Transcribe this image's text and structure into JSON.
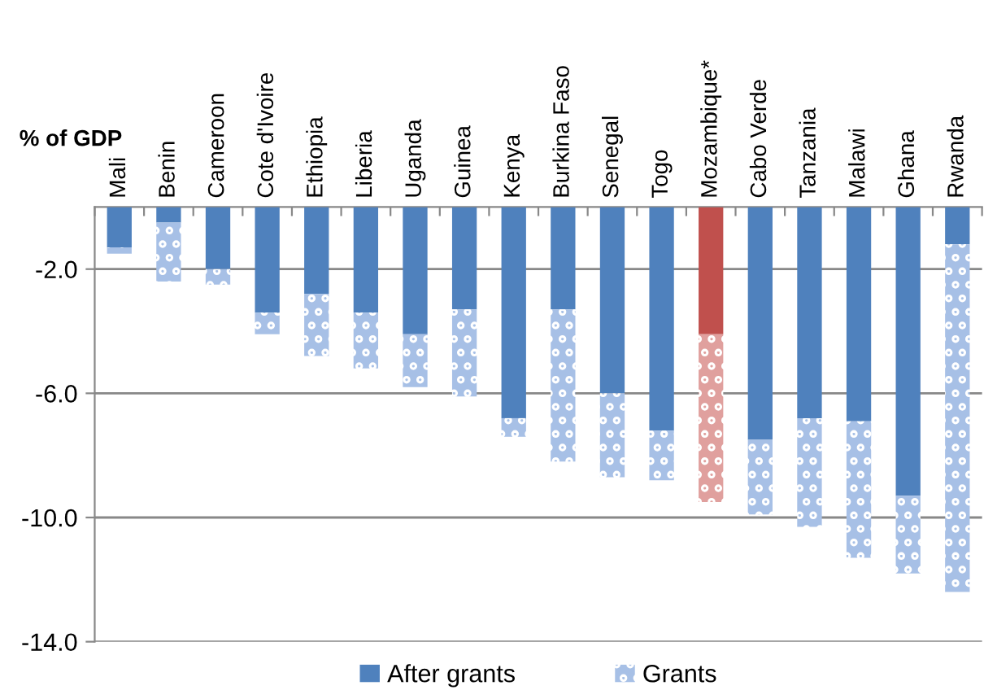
{
  "chart_data": {
    "type": "bar",
    "stacked": true,
    "ylabel": "% of GDP",
    "categories": [
      "Mali",
      "Benin",
      "Cameroon",
      "Cote d'Ivoire",
      "Ethiopia",
      "Liberia",
      "Uganda",
      "Guinea",
      "Kenya",
      "Burkina Faso",
      "Senegal",
      "Togo",
      "Mozambique*",
      "Cabo Verde",
      "Tanzania",
      "Malawi",
      "Ghana",
      "Rwanda"
    ],
    "series": [
      {
        "name": "After grants",
        "color": "#4f81bd",
        "colors": [
          "#4f81bd",
          "#4f81bd",
          "#4f81bd",
          "#4f81bd",
          "#4f81bd",
          "#4f81bd",
          "#4f81bd",
          "#4f81bd",
          "#4f81bd",
          "#4f81bd",
          "#4f81bd",
          "#4f81bd",
          "#c0504d",
          "#4f81bd",
          "#4f81bd",
          "#4f81bd",
          "#4f81bd",
          "#4f81bd"
        ],
        "values": [
          -1.3,
          -0.5,
          -2.0,
          -3.4,
          -2.8,
          -3.4,
          -4.1,
          -3.3,
          -6.8,
          -3.3,
          -6.0,
          -7.2,
          -4.1,
          -7.5,
          -6.8,
          -6.9,
          -9.3,
          -1.2
        ]
      },
      {
        "name": "Grants",
        "color": "#a7c0e6",
        "colors": [
          "#a7c0e6",
          "#a7c0e6",
          "#a7c0e6",
          "#a7c0e6",
          "#a7c0e6",
          "#a7c0e6",
          "#a7c0e6",
          "#a7c0e6",
          "#a7c0e6",
          "#a7c0e6",
          "#a7c0e6",
          "#a7c0e6",
          "#e0a09e",
          "#a7c0e6",
          "#a7c0e6",
          "#a7c0e6",
          "#a7c0e6",
          "#a7c0e6"
        ],
        "values": [
          -0.2,
          -1.9,
          -0.5,
          -0.7,
          -2.0,
          -1.8,
          -1.7,
          -2.8,
          -0.6,
          -4.9,
          -2.7,
          -1.6,
          -5.4,
          -2.4,
          -3.5,
          -4.4,
          -2.5,
          -11.2
        ]
      }
    ],
    "ylim": [
      -14,
      0
    ],
    "yticks": [
      {
        "value": -14,
        "label": "-14.0"
      },
      {
        "value": -10,
        "label": "-10.0"
      },
      {
        "value": -6,
        "label": "-6.0"
      },
      {
        "value": -2,
        "label": "-2.0"
      }
    ],
    "grid": "y",
    "legend": "bottom"
  }
}
